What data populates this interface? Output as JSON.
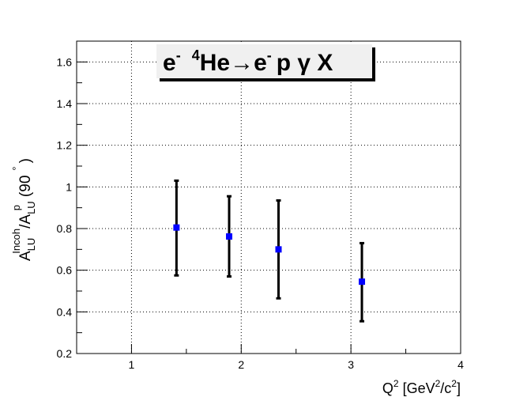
{
  "chart_data": {
    "type": "scatter",
    "title_parts": {
      "e1": "e",
      "minus1": "-",
      "mass": "4",
      "he": "He",
      "arrow": "→",
      "e2": "e",
      "minus2": "-",
      "rest": "p  γ X"
    },
    "xlabel_parts": {
      "q": "Q",
      "sup1": "2",
      "open": "[GeV",
      "sup2": "2",
      "mid": "/c",
      "sup3": "2",
      "close": "]"
    },
    "ylabel_parts": {
      "a1": "A",
      "sub1": "LU",
      "sup1": "Incoh",
      "slash": "/A",
      "sub2": "LU",
      "sup2": "p",
      "paren_open": "(90",
      "degree": "°",
      "paren_close": ")"
    },
    "xlim": [
      0.5,
      4
    ],
    "ylim": [
      0.2,
      1.7
    ],
    "x_ticks": [
      1,
      2,
      3,
      4
    ],
    "x_tick_labels": [
      "1",
      "2",
      "3",
      "4"
    ],
    "y_ticks": [
      0.2,
      0.4,
      0.6,
      0.8,
      1.0,
      1.2,
      1.4,
      1.6
    ],
    "y_tick_labels": [
      "0.2",
      "0.4",
      "0.6",
      "0.8",
      "1",
      "1.2",
      "1.4",
      "1.6"
    ],
    "grid": true,
    "marker_color": "#0000ff",
    "errorbar_color": "#000000",
    "points": [
      {
        "x": 1.41,
        "y": 0.805,
        "ylow": 0.575,
        "yhigh": 1.03
      },
      {
        "x": 1.89,
        "y": 0.762,
        "ylow": 0.57,
        "yhigh": 0.955
      },
      {
        "x": 2.34,
        "y": 0.7,
        "ylow": 0.465,
        "yhigh": 0.935
      },
      {
        "x": 3.1,
        "y": 0.545,
        "ylow": 0.355,
        "yhigh": 0.73
      }
    ]
  }
}
